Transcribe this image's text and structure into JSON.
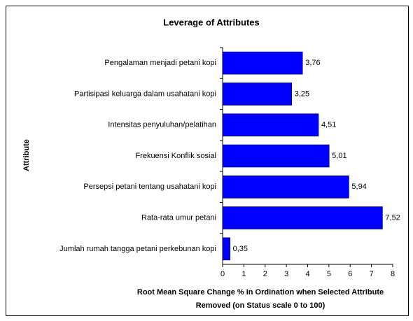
{
  "chart_data": {
    "type": "barh",
    "title": "Leverage of Attributes",
    "ylabel": "Attribute",
    "xlabel": [
      "Root Mean Square Change % in Ordination when Selected Attribute",
      "Removed (on Status scale 0 to 100)"
    ],
    "categories": [
      "Pengalaman menjadi petani kopi",
      "Partisipasi keluarga dalam usahatani kopi",
      "Intensitas penyuluhan/pelatihan",
      "Frekuensi  Konflik sosial",
      "Persepsi petani tentang usahatani kopi",
      "Rata-rata umur petani",
      "Jumlah rumah tangga petani perkebunan kopi"
    ],
    "values": [
      3.76,
      3.25,
      4.51,
      5.01,
      5.94,
      7.52,
      0.35
    ],
    "value_labels": [
      "3,76",
      "3,25",
      "4,51",
      "5,01",
      "5,94",
      "7,52",
      "0,35"
    ],
    "color": "#0000ff",
    "xlim": [
      0,
      8
    ],
    "xticks": [
      0,
      1,
      2,
      3,
      4,
      5,
      6,
      7,
      8
    ]
  }
}
